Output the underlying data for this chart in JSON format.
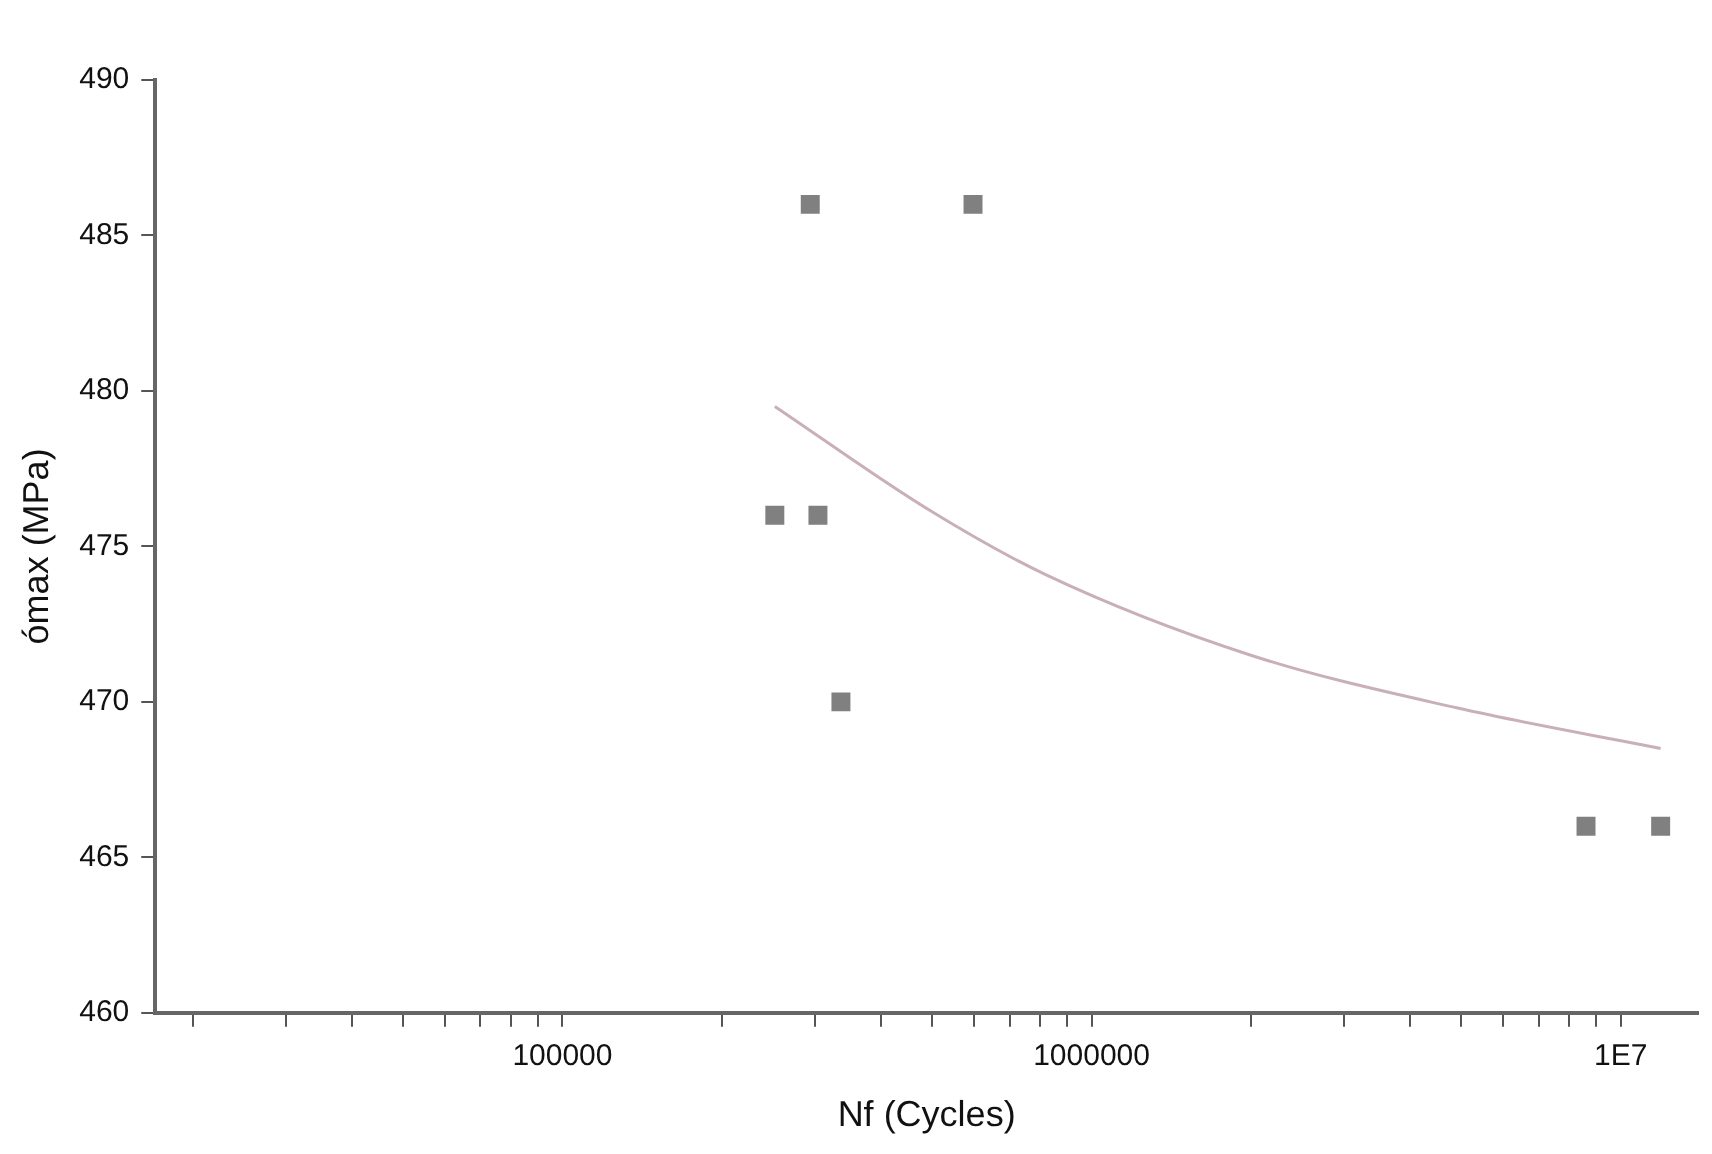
{
  "chart_data": {
    "type": "scatter",
    "xlabel": "Nf (Cycles)",
    "ylabel": "ómax (MPa)",
    "log": "x",
    "grid": false,
    "legend": false,
    "xlim": [
      17000,
      14000000
    ],
    "ylim": [
      460,
      490
    ],
    "xticks": [
      {
        "value": 20000,
        "label": null
      },
      {
        "value": 30000,
        "label": null
      },
      {
        "value": 40000,
        "label": null
      },
      {
        "value": 50000,
        "label": null
      },
      {
        "value": 60000,
        "label": null
      },
      {
        "value": 70000,
        "label": null
      },
      {
        "value": 80000,
        "label": null
      },
      {
        "value": 90000,
        "label": null
      },
      100000,
      {
        "value": 200000,
        "label": null
      },
      {
        "value": 300000,
        "label": null
      },
      {
        "value": 400000,
        "label": null
      },
      {
        "value": 500000,
        "label": null
      },
      {
        "value": 600000,
        "label": null
      },
      {
        "value": 700000,
        "label": null
      },
      {
        "value": 800000,
        "label": null
      },
      {
        "value": 900000,
        "label": null
      },
      1000000,
      {
        "value": 2000000,
        "label": null
      },
      {
        "value": 3000000,
        "label": null
      },
      {
        "value": 4000000,
        "label": null
      },
      {
        "value": 5000000,
        "label": null
      },
      {
        "value": 6000000,
        "label": null
      },
      {
        "value": 7000000,
        "label": null
      },
      {
        "value": 8000000,
        "label": null
      },
      {
        "value": 9000000,
        "label": null
      },
      {
        "value": 10000000,
        "label": "1E7"
      }
    ],
    "yticks": [
      460,
      465,
      470,
      475,
      480,
      485,
      490
    ],
    "series": [
      {
        "marker": "square",
        "color": "#808080",
        "x": [
          294000,
          597000,
          252000,
          304000,
          336000,
          8600000,
          11900000
        ],
        "values": [
          486,
          486,
          476,
          476,
          470,
          466,
          466
        ]
      },
      {
        "type": "line",
        "marker": "none",
        "color": "#c9b0b8",
        "x": [
          252000,
          490000,
          817000,
          2000000,
          4920000,
          11900000
        ],
        "values": [
          479.5,
          476.2,
          474.1,
          471.5,
          469.8,
          468.5
        ]
      }
    ]
  }
}
